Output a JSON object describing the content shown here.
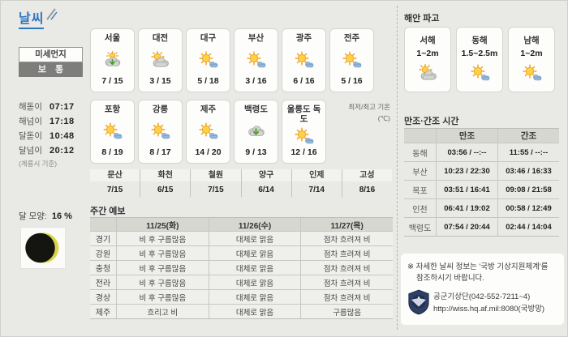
{
  "page": {
    "title": "날씨"
  },
  "colors": {
    "accent_blue": "#2f76c0",
    "dust_badge_gray": "#7d7d7b",
    "table_header_gray": "#d7d7d2"
  },
  "left": {
    "dust_label": "미세먼지",
    "dust_level": "보 통",
    "sun_moon_times": [
      {
        "label": "해돋이",
        "value": "07:17"
      },
      {
        "label": "해넘이",
        "value": "17:18"
      },
      {
        "label": "달돋이",
        "value": "10:48"
      },
      {
        "label": "달넘이",
        "value": "20:12"
      }
    ],
    "times_note": "(계룡시 기준)",
    "moon_label": "달 모양:",
    "moon_percent": "16 %"
  },
  "cities_row1": [
    {
      "name": "서울",
      "temps": "7 / 15",
      "icon": "sun-cloud-green-arrow-icon"
    },
    {
      "name": "대전",
      "temps": "3 / 15",
      "icon": "sun-behind-cloud-icon"
    },
    {
      "name": "대구",
      "temps": "5 / 18",
      "icon": "sun-small-cloud-icon"
    },
    {
      "name": "부산",
      "temps": "3 / 16",
      "icon": "sun-small-cloud-icon"
    },
    {
      "name": "광주",
      "temps": "6 / 16",
      "icon": "sun-small-cloud-icon"
    },
    {
      "name": "전주",
      "temps": "5 / 16",
      "icon": "sun-small-cloud-icon"
    }
  ],
  "cities_row2": [
    {
      "name": "포항",
      "temps": "8 / 19",
      "icon": "sun-small-cloud-icon"
    },
    {
      "name": "강릉",
      "temps": "8 / 17",
      "icon": "sun-small-cloud-icon"
    },
    {
      "name": "제주",
      "temps": "14 / 20",
      "icon": "sun-small-cloud-icon"
    },
    {
      "name": "백령도",
      "temps": "9 / 13",
      "icon": "cloud-green-arrow-icon"
    },
    {
      "name": "울릉도 독도",
      "temps": "12 / 16",
      "icon": "sun-small-cloud-icon"
    }
  ],
  "temp_note": {
    "line1": "최저/최고 기온",
    "line2": "(℃)"
  },
  "stations": [
    {
      "name": "문산",
      "temps": "7/15"
    },
    {
      "name": "화천",
      "temps": "6/15"
    },
    {
      "name": "철원",
      "temps": "7/15"
    },
    {
      "name": "양구",
      "temps": "6/14"
    },
    {
      "name": "인제",
      "temps": "7/14"
    },
    {
      "name": "고성",
      "temps": "8/16"
    }
  ],
  "weekly": {
    "title": "주간 예보",
    "dates": [
      "11/25(화)",
      "11/26(수)",
      "11/27(목)"
    ],
    "rows": [
      {
        "region": "경기",
        "cells": [
          "비 후 구름많음",
          "대체로 맑음",
          "점차 흐려져 비"
        ]
      },
      {
        "region": "강원",
        "cells": [
          "비 후 구름많음",
          "대체로 맑음",
          "점차 흐려져 비"
        ]
      },
      {
        "region": "충청",
        "cells": [
          "비 후 구름많음",
          "대체로 맑음",
          "점차 흐려져 비"
        ]
      },
      {
        "region": "전라",
        "cells": [
          "비 후 구름많음",
          "대체로 맑음",
          "점차 흐려져 비"
        ]
      },
      {
        "region": "경상",
        "cells": [
          "비 후 구름많음",
          "대체로 맑음",
          "점차 흐려져 비"
        ]
      },
      {
        "region": "제주",
        "cells": [
          "흐리고 비",
          "대체로 맑음",
          "구름많음"
        ]
      }
    ]
  },
  "coastal": {
    "title": "해안 파고",
    "seas": [
      {
        "name": "서해",
        "range": "1~2m",
        "icon": "sun-behind-cloud-icon"
      },
      {
        "name": "동해",
        "range": "1.5~2.5m",
        "icon": "sun-small-cloud-icon"
      },
      {
        "name": "남해",
        "range": "1~2m",
        "icon": "sun-small-cloud-icon"
      }
    ]
  },
  "tide": {
    "title": "만조·간조 시간",
    "col_high": "만조",
    "col_low": "간조",
    "rows": [
      {
        "port": "동해",
        "high": "03:56 / --:--",
        "low": "11:55 / --:--"
      },
      {
        "port": "부산",
        "high": "10:23 / 22:30",
        "low": "03:46 / 16:33"
      },
      {
        "port": "목포",
        "high": "03:51 / 16:41",
        "low": "09:08 / 21:58"
      },
      {
        "port": "인천",
        "high": "06:41 / 19:02",
        "low": "00:58 / 12:49"
      },
      {
        "port": "백령도",
        "high": "07:54 / 20:44",
        "low": "02:44 / 14:04"
      }
    ]
  },
  "notice": {
    "line1": "※ 자세한 날씨 정보는 '국방 기상지원체계'를",
    "line2": "참조하시기 바랍니다.",
    "org": "공군기상단(042-552-7211~4)",
    "url": "http://wiss.hq.af.mil:8080(국방망)"
  }
}
